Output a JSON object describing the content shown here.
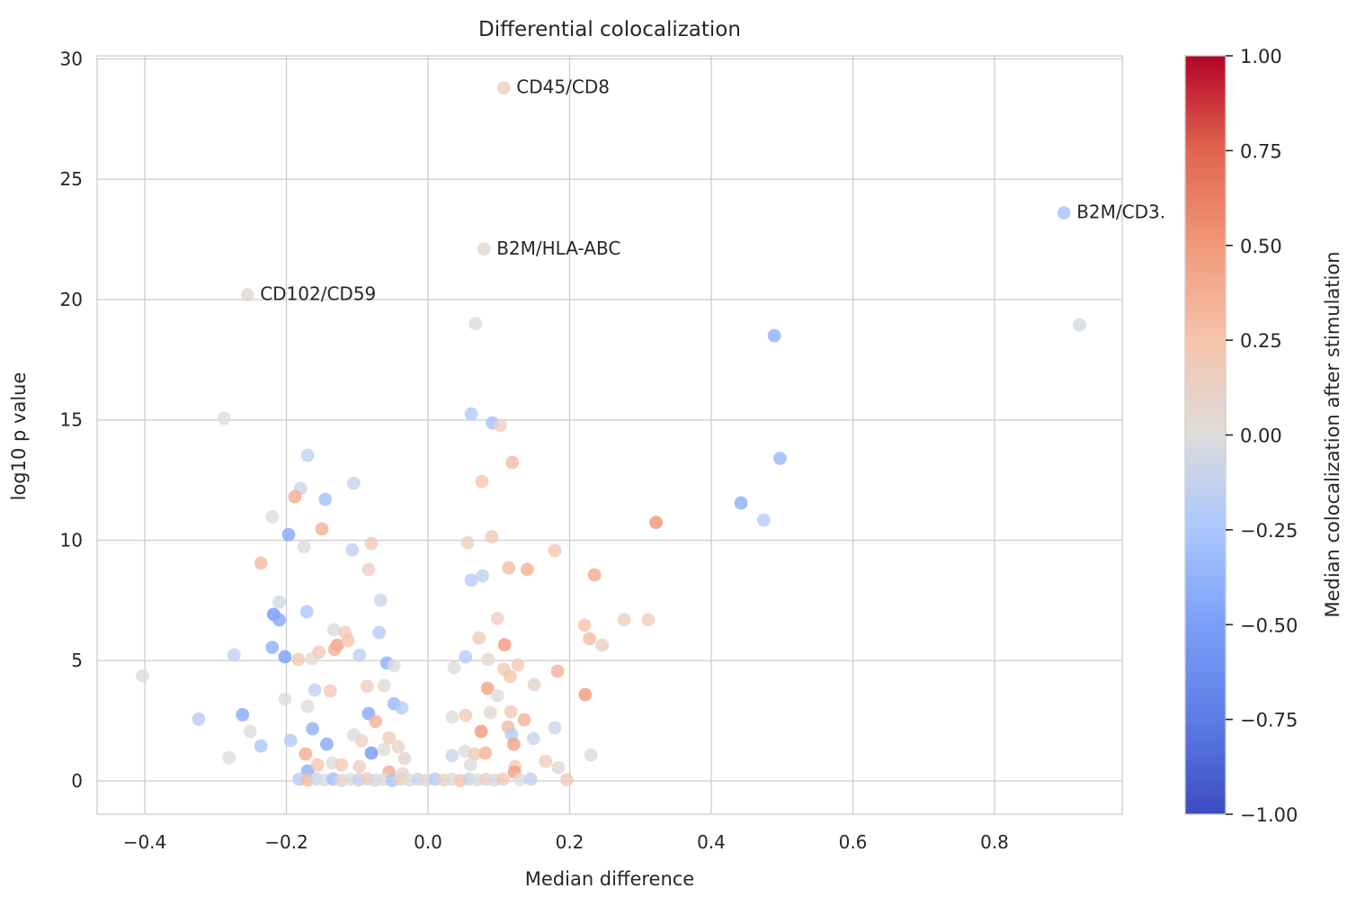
{
  "chart_data": {
    "type": "scatter",
    "title": "Differential colocalization",
    "xlabel": "Median difference",
    "ylabel": "log10 p value",
    "grid": true,
    "xlim": [
      -0.4673,
      0.9803
    ],
    "ylim": [
      -1.383,
      30.13
    ],
    "x_ticks": [
      -0.4,
      -0.2,
      0.0,
      0.2,
      0.4,
      0.6,
      0.8
    ],
    "x_tick_labels": [
      "−0.4",
      "−0.2",
      "0.0",
      "0.2",
      "0.4",
      "0.6",
      "0.8"
    ],
    "y_ticks": [
      0,
      5,
      10,
      15,
      20,
      25,
      30
    ],
    "y_tick_labels": [
      "0",
      "5",
      "10",
      "15",
      "20",
      "25",
      "30"
    ],
    "colorbar": {
      "label": "Median colocalization after stimulation",
      "min": -1.0,
      "max": 1.0,
      "ticks": [
        1.0,
        0.75,
        0.5,
        0.25,
        0.0,
        -0.25,
        -0.5,
        -0.75,
        -1.0
      ],
      "tick_labels": [
        "1.00",
        "0.75",
        "0.50",
        "0.25",
        "0.00",
        "−0.25",
        "−0.50",
        "−0.75",
        "−1.00"
      ]
    },
    "annotations": [
      {
        "text": "CD45/CD8",
        "x": 0.107,
        "y": 28.8
      },
      {
        "text": "B2M/CD3.",
        "x": 0.898,
        "y": 23.6
      },
      {
        "text": "B2M/HLA-ABC",
        "x": 0.079,
        "y": 22.1
      },
      {
        "text": "CD102/CD59",
        "x": -0.255,
        "y": 20.2
      }
    ],
    "points_format": [
      "median_difference",
      "log10_p_value",
      "median_colocalization_after_stimulation"
    ],
    "points": [
      [
        0.107,
        28.8,
        0.15
      ],
      [
        0.898,
        23.6,
        -0.28
      ],
      [
        0.079,
        22.1,
        0.08
      ],
      [
        -0.255,
        20.2,
        0.07
      ],
      [
        0.067,
        19.0,
        0.02
      ],
      [
        0.92,
        18.95,
        -0.05
      ],
      [
        0.489,
        18.5,
        -0.4
      ],
      [
        -0.288,
        15.07,
        0.0
      ],
      [
        0.061,
        15.25,
        -0.22
      ],
      [
        0.091,
        14.88,
        -0.3
      ],
      [
        0.102,
        14.77,
        0.12
      ],
      [
        0.497,
        13.4,
        -0.35
      ],
      [
        -0.17,
        13.53,
        -0.15
      ],
      [
        0.119,
        13.23,
        0.3
      ],
      [
        -0.105,
        12.37,
        -0.12
      ],
      [
        0.076,
        12.45,
        0.25
      ],
      [
        -0.18,
        12.15,
        -0.1
      ],
      [
        -0.188,
        11.81,
        0.4
      ],
      [
        -0.145,
        11.7,
        -0.3
      ],
      [
        0.442,
        11.55,
        -0.42
      ],
      [
        -0.22,
        10.97,
        0.0
      ],
      [
        0.474,
        10.84,
        -0.2
      ],
      [
        0.322,
        10.74,
        0.52
      ],
      [
        -0.197,
        10.24,
        -0.45
      ],
      [
        -0.15,
        10.47,
        0.35
      ],
      [
        0.09,
        10.15,
        0.2
      ],
      [
        0.056,
        9.9,
        0.15
      ],
      [
        -0.08,
        9.87,
        0.2
      ],
      [
        -0.175,
        9.73,
        0.02
      ],
      [
        -0.107,
        9.6,
        -0.15
      ],
      [
        0.179,
        9.57,
        0.22
      ],
      [
        -0.236,
        9.05,
        0.3
      ],
      [
        0.114,
        8.85,
        0.3
      ],
      [
        0.14,
        8.79,
        0.35
      ],
      [
        0.235,
        8.56,
        0.4
      ],
      [
        -0.084,
        8.79,
        0.15
      ],
      [
        0.061,
        8.34,
        -0.2
      ],
      [
        0.077,
        8.52,
        -0.15
      ],
      [
        -0.21,
        7.44,
        -0.05
      ],
      [
        -0.218,
        6.92,
        -0.55
      ],
      [
        -0.21,
        6.69,
        -0.45
      ],
      [
        -0.171,
        7.03,
        -0.25
      ],
      [
        -0.067,
        7.51,
        -0.1
      ],
      [
        0.277,
        6.7,
        0.15
      ],
      [
        0.311,
        6.7,
        0.2
      ],
      [
        0.221,
        6.47,
        0.25
      ],
      [
        0.098,
        6.75,
        0.15
      ],
      [
        -0.069,
        6.17,
        -0.2
      ],
      [
        -0.133,
        6.28,
        0.0
      ],
      [
        -0.117,
        6.17,
        0.2
      ],
      [
        -0.128,
        5.64,
        0.45
      ],
      [
        -0.113,
        5.83,
        0.25
      ],
      [
        0.228,
        5.91,
        0.3
      ],
      [
        0.246,
        5.64,
        0.15
      ],
      [
        0.072,
        5.94,
        0.2
      ],
      [
        0.108,
        5.66,
        0.5
      ],
      [
        -0.22,
        5.55,
        -0.4
      ],
      [
        -0.274,
        5.23,
        -0.15
      ],
      [
        -0.202,
        5.16,
        -0.5
      ],
      [
        -0.183,
        5.05,
        0.2
      ],
      [
        -0.164,
        5.08,
        0.0
      ],
      [
        -0.154,
        5.35,
        0.2
      ],
      [
        -0.132,
        5.46,
        0.35
      ],
      [
        -0.097,
        5.23,
        -0.15
      ],
      [
        -0.058,
        4.9,
        -0.4
      ],
      [
        -0.048,
        4.79,
        0.0
      ],
      [
        0.037,
        4.71,
        0.0
      ],
      [
        0.053,
        5.16,
        -0.2
      ],
      [
        0.085,
        5.05,
        0.05
      ],
      [
        0.107,
        4.65,
        0.2
      ],
      [
        0.116,
        4.34,
        0.25
      ],
      [
        0.127,
        4.82,
        0.2
      ],
      [
        -0.403,
        4.37,
        0.0
      ],
      [
        0.183,
        4.56,
        0.35
      ],
      [
        0.15,
        4.0,
        0.1
      ],
      [
        -0.16,
        3.78,
        -0.15
      ],
      [
        -0.138,
        3.74,
        0.2
      ],
      [
        -0.202,
        3.4,
        0.0
      ],
      [
        -0.17,
        3.1,
        0.0
      ],
      [
        -0.086,
        3.93,
        0.15
      ],
      [
        -0.062,
        3.96,
        0.05
      ],
      [
        -0.048,
        3.21,
        -0.35
      ],
      [
        -0.037,
        3.03,
        -0.2
      ],
      [
        -0.084,
        2.8,
        -0.45
      ],
      [
        -0.074,
        2.47,
        0.35
      ],
      [
        0.084,
        3.85,
        0.45
      ],
      [
        0.098,
        3.55,
        0.0
      ],
      [
        0.034,
        2.65,
        0.0
      ],
      [
        0.053,
        2.73,
        0.2
      ],
      [
        0.075,
        2.06,
        0.5
      ],
      [
        0.088,
        2.84,
        0.05
      ],
      [
        0.113,
        2.24,
        0.3
      ],
      [
        0.222,
        3.59,
        0.5
      ],
      [
        -0.251,
        2.06,
        0.0
      ],
      [
        -0.236,
        1.45,
        -0.25
      ],
      [
        -0.262,
        2.75,
        -0.45
      ],
      [
        -0.324,
        2.57,
        -0.2
      ],
      [
        -0.281,
        0.97,
        0.0
      ],
      [
        -0.194,
        1.68,
        -0.2
      ],
      [
        -0.163,
        2.17,
        -0.4
      ],
      [
        -0.143,
        1.53,
        -0.45
      ],
      [
        -0.105,
        1.91,
        0.0
      ],
      [
        -0.094,
        1.68,
        0.1
      ],
      [
        -0.08,
        1.16,
        -0.55
      ],
      [
        -0.062,
        1.31,
        0.0
      ],
      [
        -0.055,
        1.79,
        0.2
      ],
      [
        -0.042,
        1.42,
        0.1
      ],
      [
        -0.033,
        0.93,
        0.1
      ],
      [
        0.034,
        1.05,
        -0.1
      ],
      [
        0.052,
        1.23,
        0.0
      ],
      [
        0.066,
        1.12,
        0.2
      ],
      [
        0.081,
        1.16,
        0.35
      ],
      [
        0.06,
        0.67,
        0.0
      ],
      [
        -0.173,
        1.12,
        0.4
      ],
      [
        -0.17,
        0.41,
        -0.4
      ],
      [
        -0.156,
        0.67,
        0.25
      ],
      [
        -0.135,
        0.75,
        0.0
      ],
      [
        -0.122,
        0.67,
        0.2
      ],
      [
        -0.097,
        0.6,
        0.15
      ],
      [
        -0.055,
        0.37,
        0.4
      ],
      [
        -0.036,
        0.3,
        0.05
      ],
      [
        0.117,
        2.88,
        0.2
      ],
      [
        0.136,
        2.54,
        0.35
      ],
      [
        0.179,
        2.21,
        -0.1
      ],
      [
        0.118,
        1.94,
        -0.2
      ],
      [
        0.149,
        1.76,
        -0.1
      ],
      [
        0.121,
        1.53,
        0.45
      ],
      [
        0.166,
        0.82,
        0.2
      ],
      [
        0.23,
        1.08,
        0.0
      ],
      [
        0.184,
        0.56,
        0.05
      ],
      [
        0.123,
        0.6,
        0.2
      ],
      [
        0.196,
        0.05,
        0.2
      ],
      [
        0.122,
        0.37,
        0.45
      ],
      [
        -0.182,
        0.07,
        -0.2
      ],
      [
        -0.17,
        0.04,
        0.3
      ],
      [
        -0.158,
        0.09,
        -0.1
      ],
      [
        -0.146,
        0.03,
        0.0
      ],
      [
        -0.134,
        0.08,
        -0.3
      ],
      [
        -0.122,
        0.02,
        0.1
      ],
      [
        -0.11,
        0.07,
        0.0
      ],
      [
        -0.098,
        0.04,
        -0.15
      ],
      [
        -0.086,
        0.09,
        0.2
      ],
      [
        -0.074,
        0.03,
        -0.05
      ],
      [
        -0.062,
        0.07,
        0.0
      ],
      [
        -0.05,
        0.02,
        -0.25
      ],
      [
        -0.038,
        0.08,
        0.15
      ],
      [
        -0.026,
        0.04,
        0.0
      ],
      [
        -0.014,
        0.07,
        -0.1
      ],
      [
        -0.002,
        0.03,
        0.05
      ],
      [
        0.01,
        0.08,
        -0.2
      ],
      [
        0.022,
        0.04,
        0.1
      ],
      [
        0.034,
        0.07,
        0.0
      ],
      [
        0.046,
        0.02,
        0.25
      ],
      [
        0.058,
        0.08,
        -0.1
      ],
      [
        0.07,
        0.04,
        0.0
      ],
      [
        0.082,
        0.07,
        0.15
      ],
      [
        0.094,
        0.03,
        -0.05
      ],
      [
        0.106,
        0.08,
        0.2
      ],
      [
        0.13,
        0.05,
        0.0
      ],
      [
        0.145,
        0.08,
        -0.15
      ]
    ]
  },
  "style": {
    "background": "#ffffff",
    "grid_color": "#cccccc",
    "spine_color": "#cccccc",
    "text_color": "#262626",
    "point_alpha": 0.8,
    "colormap_name": "coolwarm",
    "colormap_stops": [
      [
        -1.0,
        "#3b4cc0"
      ],
      [
        -0.75,
        "#5d7ce6"
      ],
      [
        -0.5,
        "#7b9ff9"
      ],
      [
        -0.25,
        "#aac7fd"
      ],
      [
        0.0,
        "#dddcdc"
      ],
      [
        0.25,
        "#f6c4ab"
      ],
      [
        0.5,
        "#f2987a"
      ],
      [
        0.75,
        "#e0654f"
      ],
      [
        1.0,
        "#b40426"
      ]
    ]
  }
}
